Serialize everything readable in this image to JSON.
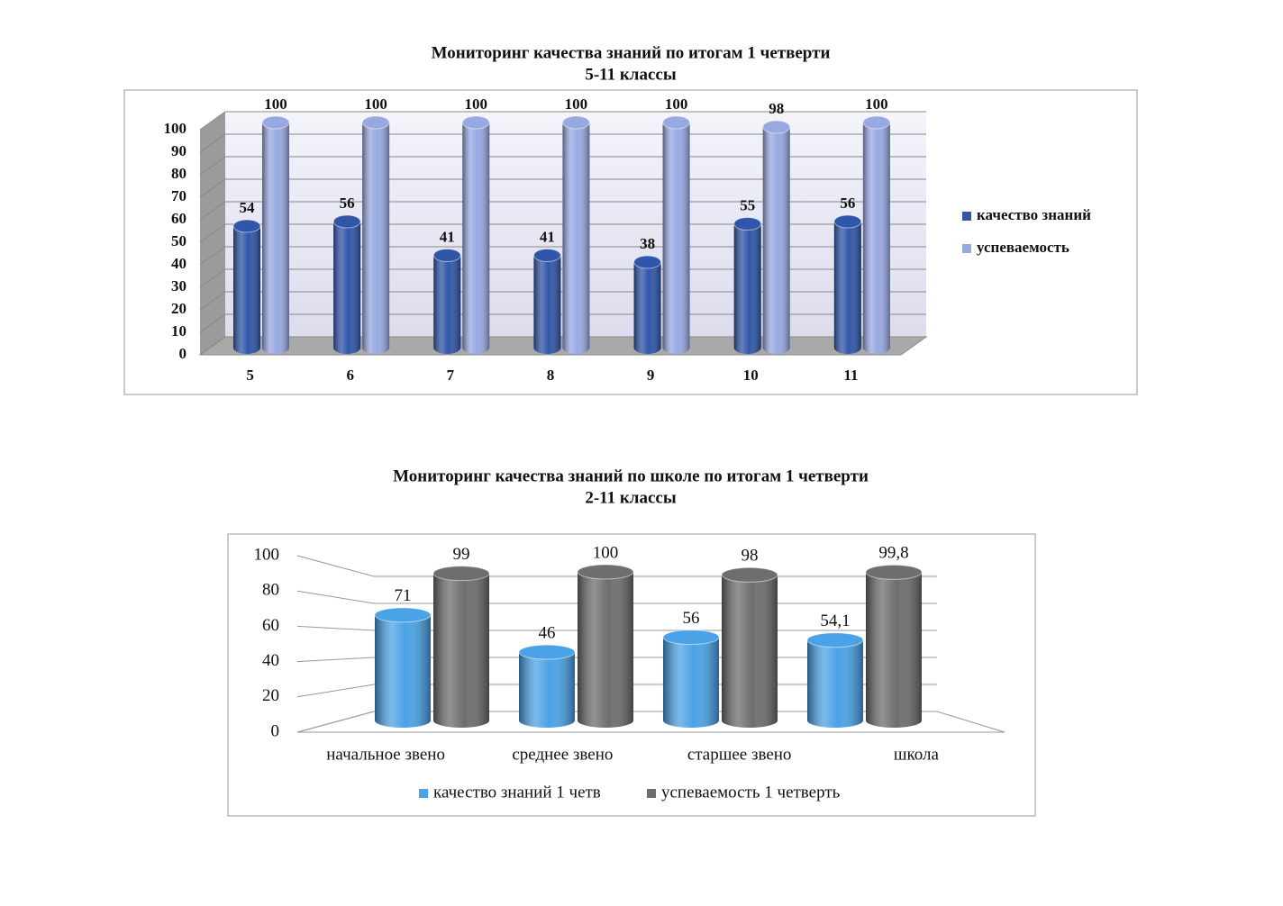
{
  "chart_data": [
    {
      "type": "bar",
      "title": "Мониторинг качества знаний по итогам 1 четверти",
      "subtitle": "5-11 классы",
      "categories": [
        "5",
        "6",
        "7",
        "8",
        "9",
        "10",
        "11"
      ],
      "series": [
        {
          "name": "качество знаний",
          "color": "#2f56a8",
          "values": [
            54,
            56,
            41,
            41,
            38,
            55,
            56
          ]
        },
        {
          "name": "успеваемость",
          "color": "#98a9e2",
          "values": [
            100,
            100,
            100,
            100,
            100,
            98,
            100
          ]
        }
      ],
      "ylim": [
        0,
        100
      ],
      "yticks": [
        0,
        10,
        20,
        30,
        40,
        50,
        60,
        70,
        80,
        90,
        100
      ],
      "grid": true,
      "legend": "right"
    },
    {
      "type": "bar",
      "title": "Мониторинг качества знаний по школе по итогам 1 четверти",
      "subtitle": "2-11 классы",
      "categories": [
        "начальное звено",
        "среднее звено",
        "старшее звено",
        "школа"
      ],
      "series": [
        {
          "name": "качество знаний 1 четв",
          "color": "#4aa3e6",
          "values": [
            71,
            46,
            56,
            54.1
          ],
          "value_labels": [
            "71",
            "46",
            "56",
            "54,1"
          ]
        },
        {
          "name": "успеваемость 1 четверть",
          "color": "#6e6e6e",
          "values": [
            99,
            100,
            98,
            99.8
          ],
          "value_labels": [
            "99",
            "100",
            "98",
            "99,8"
          ]
        }
      ],
      "ylim": [
        0,
        100
      ],
      "yticks": [
        0,
        20,
        40,
        60,
        80,
        100
      ],
      "grid": true,
      "legend": "bottom"
    }
  ]
}
